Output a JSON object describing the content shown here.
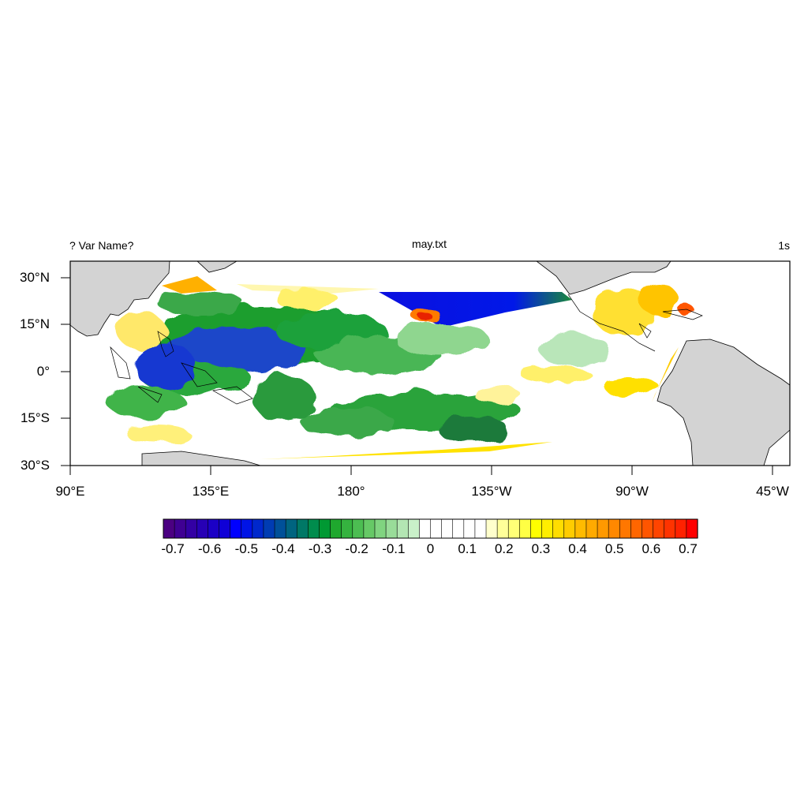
{
  "header": {
    "left": "? Var Name?",
    "center": "may.txt",
    "right": "1s"
  },
  "map": {
    "projection": "cylindrical equidistant",
    "lon_range": [
      90,
      315
    ],
    "lat_range": [
      -30,
      35
    ],
    "land_color": "#d3d3d3",
    "lat_labels": [
      "30°N",
      "15°N",
      "0°",
      "15°S",
      "30°S"
    ],
    "lon_labels": [
      "90°E",
      "135°E",
      "180°",
      "135°W",
      "90°W",
      "45°W"
    ]
  },
  "colorbar": {
    "labels": [
      "-0.7",
      "-0.6",
      "-0.5",
      "-0.4",
      "-0.3",
      "-0.2",
      "-0.1",
      "0",
      "0.1",
      "0.2",
      "0.3",
      "0.4",
      "0.5",
      "0.6",
      "0.7"
    ],
    "colors": [
      "#4b0082",
      "#3f0093",
      "#3300a4",
      "#2700b5",
      "#1b00c6",
      "#0f00d7",
      "#0000ff",
      "#0014e6",
      "#0028cc",
      "#003cb3",
      "#005099",
      "#006480",
      "#007866",
      "#008c4d",
      "#009933",
      "#1fa82e",
      "#35b33f",
      "#4cbd52",
      "#66c966",
      "#80d480",
      "#99dc99",
      "#b3e6b3",
      "#c9f0c9",
      "#ffffff",
      "#ffffff",
      "#ffffff",
      "#ffffff",
      "#ffffff",
      "#ffffff",
      "#ffffcc",
      "#ffff99",
      "#ffff77",
      "#ffff44",
      "#ffff00",
      "#ffee00",
      "#ffdd00",
      "#ffcc00",
      "#ffbb00",
      "#ffaa00",
      "#ff9900",
      "#ff8800",
      "#ff7700",
      "#ff6600",
      "#ff5500",
      "#ff4400",
      "#ff3300",
      "#ff2200",
      "#ff0000"
    ]
  }
}
